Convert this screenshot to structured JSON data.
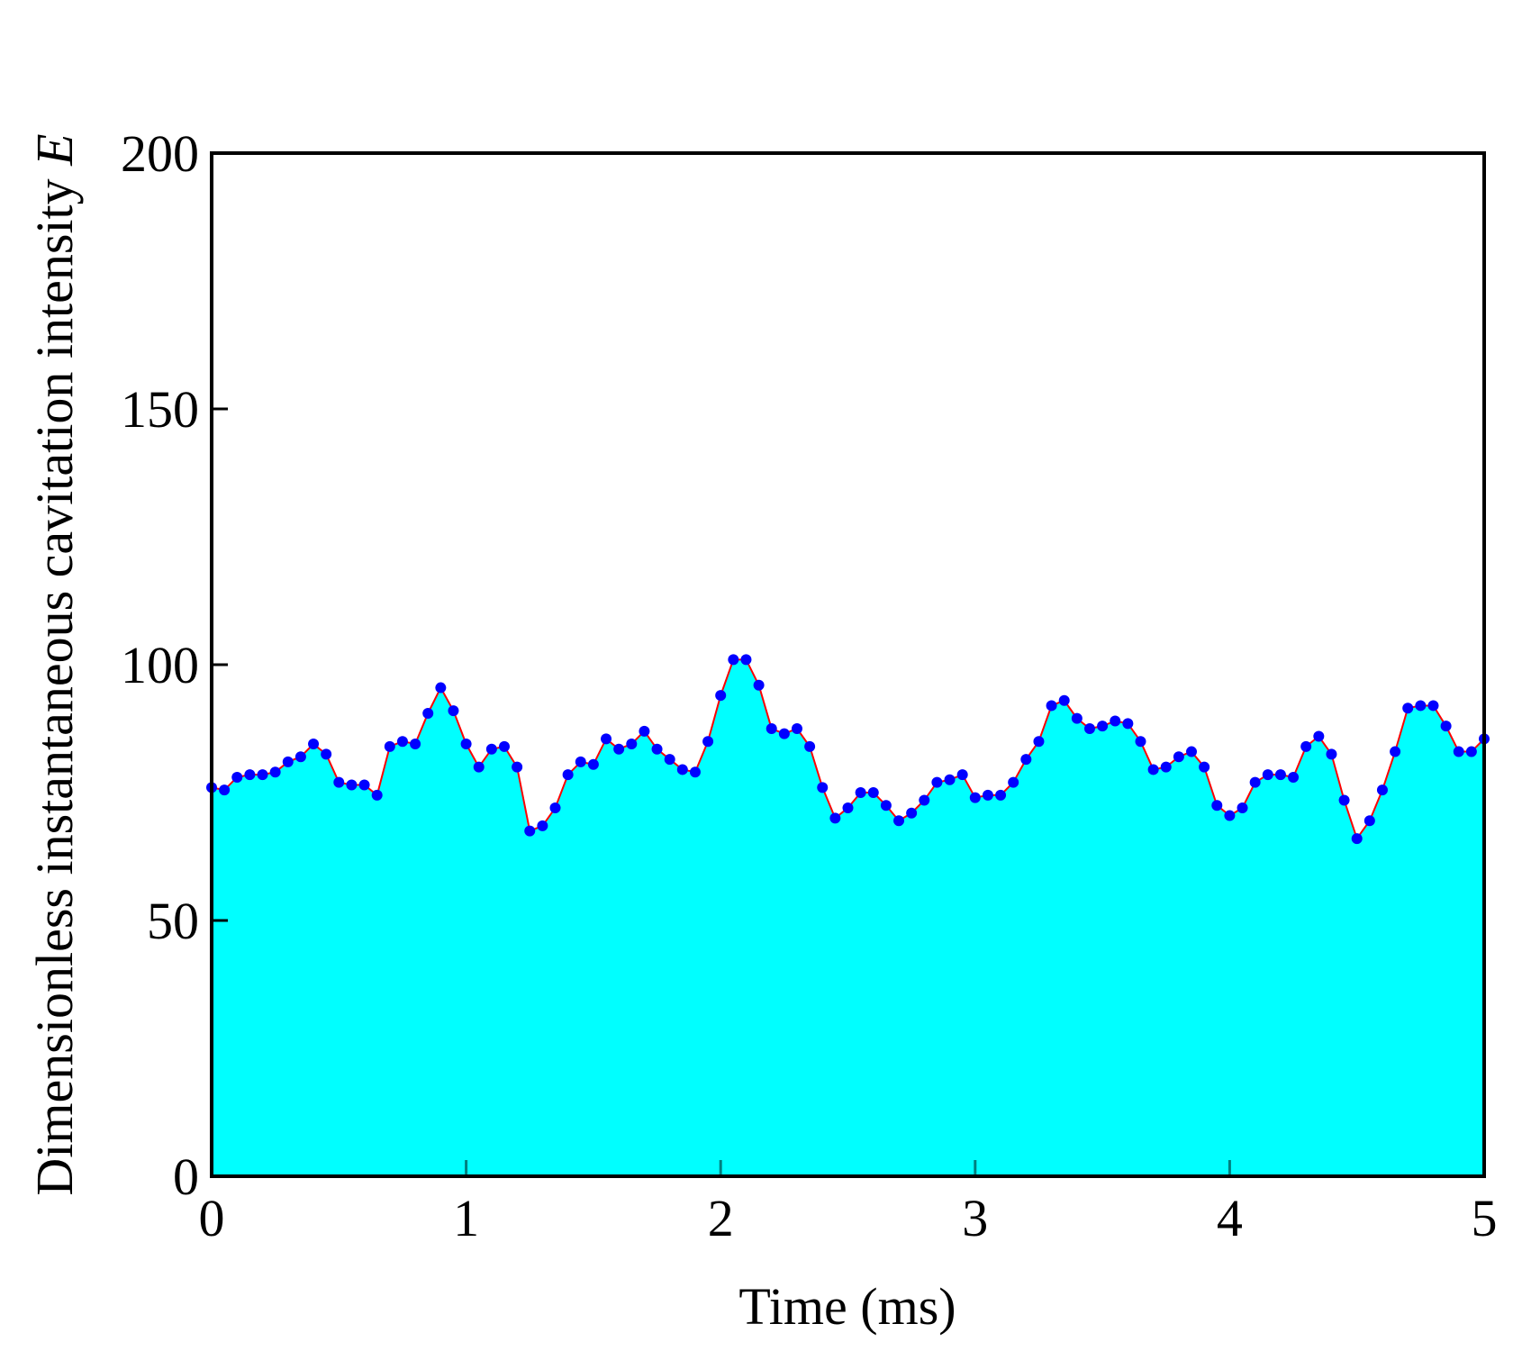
{
  "chart_data": {
    "type": "area",
    "xlabel": "Time (ms)",
    "ylabel": "Dimensionless instantaneous cavitation intensity",
    "ylabel_var": "E",
    "x": [
      0,
      0.05,
      0.1,
      0.15,
      0.2,
      0.25,
      0.3,
      0.35,
      0.4,
      0.45,
      0.5,
      0.55,
      0.6,
      0.65,
      0.7,
      0.75,
      0.8,
      0.85,
      0.9,
      0.95,
      1,
      1.05,
      1.1,
      1.15,
      1.2,
      1.25,
      1.3,
      1.35,
      1.4,
      1.45,
      1.5,
      1.55,
      1.6,
      1.65,
      1.7,
      1.75,
      1.8,
      1.85,
      1.9,
      1.95,
      2,
      2.05,
      2.1,
      2.15,
      2.2,
      2.25,
      2.3,
      2.35,
      2.4,
      2.45,
      2.5,
      2.55,
      2.6,
      2.65,
      2.7,
      2.75,
      2.8,
      2.85,
      2.9,
      2.95,
      3,
      3.05,
      3.1,
      3.15,
      3.2,
      3.25,
      3.3,
      3.35,
      3.4,
      3.45,
      3.5,
      3.55,
      3.6,
      3.65,
      3.7,
      3.75,
      3.8,
      3.85,
      3.9,
      3.95,
      4,
      4.05,
      4.1,
      4.15,
      4.2,
      4.25,
      4.3,
      4.35,
      4.4,
      4.45,
      4.5,
      4.55,
      4.6,
      4.65,
      4.7,
      4.75,
      4.8,
      4.85,
      4.9,
      4.95,
      5
    ],
    "values": [
      76,
      75.5,
      78,
      78.5,
      78.5,
      79,
      81,
      82,
      84.5,
      82.5,
      77,
      76.5,
      76.5,
      74.5,
      84,
      85,
      84.5,
      90.5,
      95.5,
      91,
      84.5,
      80,
      83.5,
      84,
      80,
      67.5,
      68.5,
      72,
      78.5,
      81,
      80.5,
      85.5,
      83.5,
      84.5,
      87,
      83.5,
      81.5,
      79.5,
      79,
      85,
      94,
      101,
      101,
      96,
      87.5,
      86.5,
      87.5,
      84,
      76,
      70,
      72,
      75,
      75,
      72.5,
      69.5,
      71,
      73.5,
      77,
      77.5,
      78.5,
      74,
      74.5,
      74.5,
      77,
      81.5,
      85,
      92,
      93,
      89.5,
      87.5,
      88,
      89,
      88.5,
      85,
      79.5,
      80,
      82,
      83,
      80,
      72.5,
      70.5,
      72,
      77,
      78.5,
      78.5,
      78,
      84,
      86,
      82.5,
      73.5,
      66,
      69.5,
      75.5,
      83,
      91.5,
      92,
      92,
      88,
      83,
      83,
      85.5
    ],
    "fill_color": "#00ffff",
    "line_color": "#ff0000",
    "marker_color": "#0000ff",
    "xlim": [
      0,
      5
    ],
    "xticks": [
      0,
      1,
      2,
      3,
      4,
      5
    ],
    "ylim": [
      0,
      200
    ],
    "yticks": [
      0,
      50,
      100,
      150,
      200
    ]
  }
}
